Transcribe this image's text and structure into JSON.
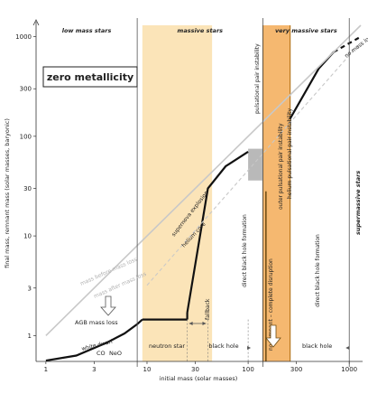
{
  "chart_data": {
    "type": "line",
    "title": "zero metallicity",
    "xlabel": "initial mass (solar masses)",
    "ylabel": "final mass, remnant mass (solar masses, baryonic)",
    "xscale": "log",
    "yscale": "log",
    "xlim": [
      0.8,
      1300
    ],
    "ylim": [
      0.55,
      1300
    ],
    "x_ticks": [
      {
        "v": 1,
        "label": "1"
      },
      {
        "v": 3,
        "label": "3"
      },
      {
        "v": 10,
        "label": "10"
      },
      {
        "v": 30,
        "label": "30"
      },
      {
        "v": 100,
        "label": "100"
      },
      {
        "v": 300,
        "label": "300"
      },
      {
        "v": 1000,
        "label": "1000"
      }
    ],
    "y_ticks": [
      {
        "v": 1,
        "label": "1"
      },
      {
        "v": 3,
        "label": "3"
      },
      {
        "v": 10,
        "label": "10"
      },
      {
        "v": 30,
        "label": "30"
      },
      {
        "v": 100,
        "label": "100"
      },
      {
        "v": 300,
        "label": "300"
      },
      {
        "v": 1000,
        "label": "1000"
      }
    ],
    "regions": [
      {
        "key": "low",
        "label": "low mass stars",
        "x0": 0.8,
        "x1": 8
      },
      {
        "key": "massive",
        "label": "massive stars",
        "x0": 8,
        "x1": 140
      },
      {
        "key": "very_massive",
        "label": "very massive stars",
        "x0": 140,
        "x1": 1000
      }
    ],
    "shaded_regions": [
      {
        "name": "neutron star band",
        "x0": 9,
        "x1": 44,
        "color": "#fbe4b8"
      },
      {
        "name": "pair instability band",
        "x0": 140,
        "x1": 260,
        "color": "#f5b870"
      }
    ],
    "colors": {
      "remnant_curve": "#222222",
      "reference_lines": "#c8c8c8",
      "neutron_star_band": "#fbe4b8",
      "pair_instability_band": "#f5b870",
      "band_edge": "#b87820",
      "pulsational_box": "#b9b9b9"
    },
    "series": [
      {
        "style": "solid-black",
        "x": [
          1,
          2,
          4,
          6,
          8,
          9
        ],
        "y": [
          0.56,
          0.63,
          0.85,
          1.05,
          1.3,
          1.45
        ]
      },
      {
        "style": "solid-black",
        "x": [
          9,
          25
        ],
        "y": [
          1.45,
          1.45
        ]
      },
      {
        "style": "solid-black",
        "x": [
          25,
          40,
          60,
          100
        ],
        "y": [
          1.7,
          30,
          50,
          70
        ]
      },
      {
        "style": "solid-black",
        "x": [
          260,
          500,
          700
        ],
        "y": [
          150,
          480,
          700
        ]
      },
      {
        "style": "dashed-black",
        "x": [
          700,
          1300
        ],
        "y": [
          700,
          1000
        ]
      },
      {
        "style": "gray-diagonal",
        "x": [
          1,
          1300
        ],
        "y": [
          1,
          1300
        ]
      },
      {
        "style": "gray-reference",
        "x": [
          10,
          1300
        ],
        "y": [
          3.2,
          880
        ]
      }
    ],
    "pulsational_box": {
      "x0": 100,
      "x1": 140,
      "y0": 36,
      "y1": 75
    },
    "annotations": {
      "no_mass_loss": "no mass loss",
      "pulsational_pair_instability": "pulsational pair instability",
      "direct_bh_1": "direct black hole formation",
      "direct_bh_2": "direct black hole formation",
      "no_remnant": "no remnant – complete disruption",
      "pair_instability_1": "outer pulsational pair instability",
      "pair_instability_2": "helium pulsational pair instability",
      "supermassive": "supermassive stars",
      "supernova_explosion": "supernova explosion",
      "helium_core": "helium core",
      "mass_after_mass_loss": "mass after mass loss",
      "mass_before_mass_loss": "mass before mass loss",
      "agb_mass_loss": "AGB mass loss",
      "white_dwarf": "white dwarf",
      "co": "CO",
      "neo": "NeO",
      "neutron_star": "neutron star",
      "black_hole_1": "black hole",
      "black_hole_2": "black hole",
      "fallback": "fallback"
    }
  }
}
